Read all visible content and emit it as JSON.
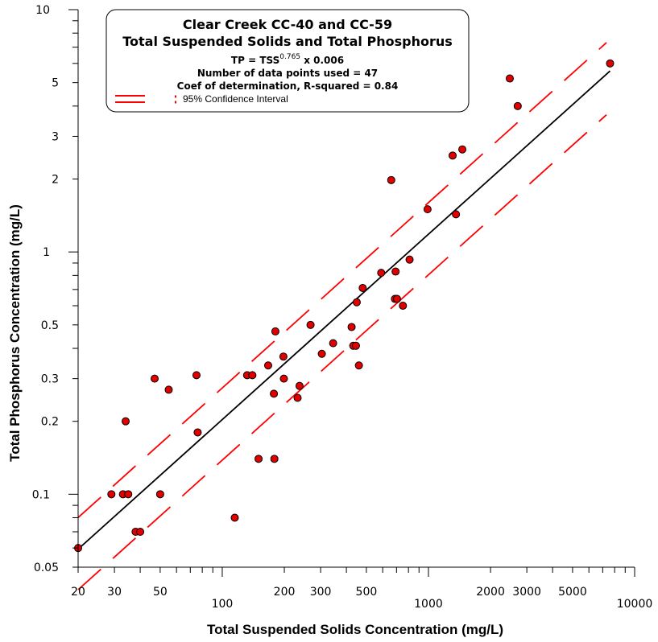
{
  "chart_data": {
    "type": "scatter",
    "title": "Clear Creek CC-40 and CC-59",
    "subtitle": "Total Suspended Solids and Total Phosphorus",
    "equation": {
      "prefix": "TP = TSS",
      "exponent": "0.765",
      "suffix": " x 0.006"
    },
    "n_points_text": "Number of data points used = 47",
    "r2_text": "Coef of determination, R-squared = 0.84",
    "legend": [
      {
        "name": "95% Confidence Interval",
        "color": "#ff0000",
        "style": "dashed"
      }
    ],
    "xlabel": "Total Suspended Solids Concentration (mg/L)",
    "ylabel": "Total Phosphorus Concentration (mg/L)",
    "x_scale": "log",
    "y_scale": "log",
    "xlim": [
      20,
      10000
    ],
    "ylim": [
      0.05,
      10
    ],
    "x_ticks": [
      {
        "value": 20,
        "label": "20"
      },
      {
        "value": 30,
        "label": "30"
      },
      {
        "value": 50,
        "label": "50"
      },
      {
        "value": 100,
        "label": "100"
      },
      {
        "value": 200,
        "label": "200"
      },
      {
        "value": 300,
        "label": "300"
      },
      {
        "value": 500,
        "label": "500"
      },
      {
        "value": 1000,
        "label": "1000"
      },
      {
        "value": 2000,
        "label": "2000"
      },
      {
        "value": 3000,
        "label": "3000"
      },
      {
        "value": 5000,
        "label": "5000"
      },
      {
        "value": 10000,
        "label": "10000"
      }
    ],
    "y_ticks": [
      {
        "value": 0.05,
        "label": "0.05"
      },
      {
        "value": 0.1,
        "label": "0.1"
      },
      {
        "value": 0.2,
        "label": "0.2"
      },
      {
        "value": 0.3,
        "label": "0.3"
      },
      {
        "value": 0.5,
        "label": "0.5"
      },
      {
        "value": 1,
        "label": "1"
      },
      {
        "value": 2,
        "label": "2"
      },
      {
        "value": 3,
        "label": "3"
      },
      {
        "value": 5,
        "label": "5"
      },
      {
        "value": 10,
        "label": "10"
      }
    ],
    "points": [
      [
        20,
        0.06
      ],
      [
        29,
        0.1
      ],
      [
        33,
        0.1
      ],
      [
        34,
        0.2
      ],
      [
        35,
        0.1
      ],
      [
        38,
        0.07
      ],
      [
        40,
        0.07
      ],
      [
        47,
        0.3
      ],
      [
        50,
        0.1
      ],
      [
        55,
        0.27
      ],
      [
        75,
        0.31
      ],
      [
        76,
        0.18
      ],
      [
        115,
        0.08
      ],
      [
        132,
        0.31
      ],
      [
        140,
        0.31
      ],
      [
        150,
        0.14
      ],
      [
        167,
        0.34
      ],
      [
        178,
        0.26
      ],
      [
        179,
        0.14
      ],
      [
        181,
        0.47
      ],
      [
        198,
        0.37
      ],
      [
        199,
        0.3
      ],
      [
        232,
        0.25
      ],
      [
        237,
        0.28
      ],
      [
        268,
        0.5
      ],
      [
        304,
        0.38
      ],
      [
        345,
        0.42
      ],
      [
        424,
        0.49
      ],
      [
        432,
        0.41
      ],
      [
        445,
        0.41
      ],
      [
        449,
        0.62
      ],
      [
        460,
        0.34
      ],
      [
        480,
        0.71
      ],
      [
        590,
        0.82
      ],
      [
        660,
        1.98
      ],
      [
        688,
        0.64
      ],
      [
        693,
        0.83
      ],
      [
        704,
        0.64
      ],
      [
        752,
        0.6
      ],
      [
        810,
        0.93
      ],
      [
        990,
        1.5
      ],
      [
        1310,
        2.5
      ],
      [
        1360,
        1.43
      ],
      [
        1460,
        2.65
      ],
      [
        2480,
        5.2
      ],
      [
        2710,
        4.0
      ],
      [
        7600,
        6.0
      ]
    ],
    "regression": {
      "coefficient": 0.006,
      "exponent": 0.765,
      "x_range": [
        20,
        7600
      ]
    },
    "ci_upper": {
      "offset_factor": 1.35,
      "x_range": [
        20,
        7300
      ]
    },
    "ci_lower": {
      "offset_factor": 0.68,
      "x_range": [
        20,
        7300
      ]
    },
    "colors": {
      "point_fill": "#e10000",
      "point_stroke": "#000000",
      "fit_line": "#000000",
      "ci": "#ff0000"
    }
  }
}
